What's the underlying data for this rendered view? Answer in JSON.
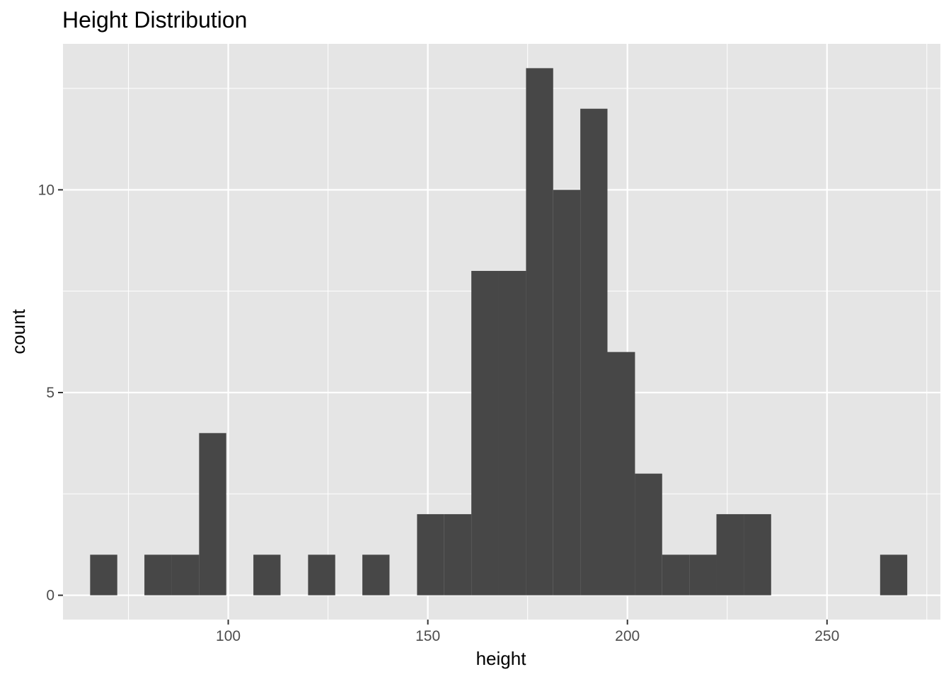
{
  "chart_data": {
    "type": "bar",
    "title": "Height Distribution",
    "xlabel": "height",
    "ylabel": "count",
    "xlim": [
      58.6,
      278.4
    ],
    "ylim": [
      -0.6,
      13.6
    ],
    "x_ticks": [
      100,
      150,
      200,
      250
    ],
    "x_minor_ticks": [
      75,
      125,
      175,
      225,
      275
    ],
    "y_ticks": [
      0,
      5,
      10
    ],
    "y_minor_ticks": [
      2.5,
      7.5,
      12.5
    ],
    "bin_width": 6.82,
    "bins": [
      {
        "x0": 65.4,
        "x1": 72.2,
        "count": 1
      },
      {
        "x0": 72.2,
        "x1": 79.0,
        "count": 0
      },
      {
        "x0": 79.0,
        "x1": 85.8,
        "count": 1
      },
      {
        "x0": 85.8,
        "x1": 92.7,
        "count": 1
      },
      {
        "x0": 92.7,
        "x1": 99.5,
        "count": 4
      },
      {
        "x0": 99.5,
        "x1": 106.3,
        "count": 0
      },
      {
        "x0": 106.3,
        "x1": 113.1,
        "count": 1
      },
      {
        "x0": 113.1,
        "x1": 120.0,
        "count": 0
      },
      {
        "x0": 120.0,
        "x1": 126.8,
        "count": 1
      },
      {
        "x0": 126.8,
        "x1": 133.6,
        "count": 0
      },
      {
        "x0": 133.6,
        "x1": 140.4,
        "count": 1
      },
      {
        "x0": 140.4,
        "x1": 147.3,
        "count": 0
      },
      {
        "x0": 147.3,
        "x1": 154.1,
        "count": 2
      },
      {
        "x0": 154.1,
        "x1": 160.9,
        "count": 2
      },
      {
        "x0": 160.9,
        "x1": 167.7,
        "count": 8
      },
      {
        "x0": 167.7,
        "x1": 174.6,
        "count": 8
      },
      {
        "x0": 174.6,
        "x1": 181.4,
        "count": 13
      },
      {
        "x0": 181.4,
        "x1": 188.2,
        "count": 10
      },
      {
        "x0": 188.2,
        "x1": 195.0,
        "count": 12
      },
      {
        "x0": 195.0,
        "x1": 201.9,
        "count": 6
      },
      {
        "x0": 201.9,
        "x1": 208.7,
        "count": 3
      },
      {
        "x0": 208.7,
        "x1": 215.5,
        "count": 1
      },
      {
        "x0": 215.5,
        "x1": 222.3,
        "count": 1
      },
      {
        "x0": 222.3,
        "x1": 229.2,
        "count": 2
      },
      {
        "x0": 229.2,
        "x1": 236.0,
        "count": 2
      },
      {
        "x0": 236.0,
        "x1": 242.8,
        "count": 0
      },
      {
        "x0": 242.8,
        "x1": 249.6,
        "count": 0
      },
      {
        "x0": 249.6,
        "x1": 256.5,
        "count": 0
      },
      {
        "x0": 256.5,
        "x1": 263.3,
        "count": 0
      },
      {
        "x0": 263.3,
        "x1": 270.1,
        "count": 1
      }
    ],
    "colors": {
      "bar_fill": "#474747",
      "panel_background": "#e5e5e5",
      "grid": "#ffffff",
      "tick_label": "#4d4d4d",
      "tick_mark": "#333333"
    }
  }
}
